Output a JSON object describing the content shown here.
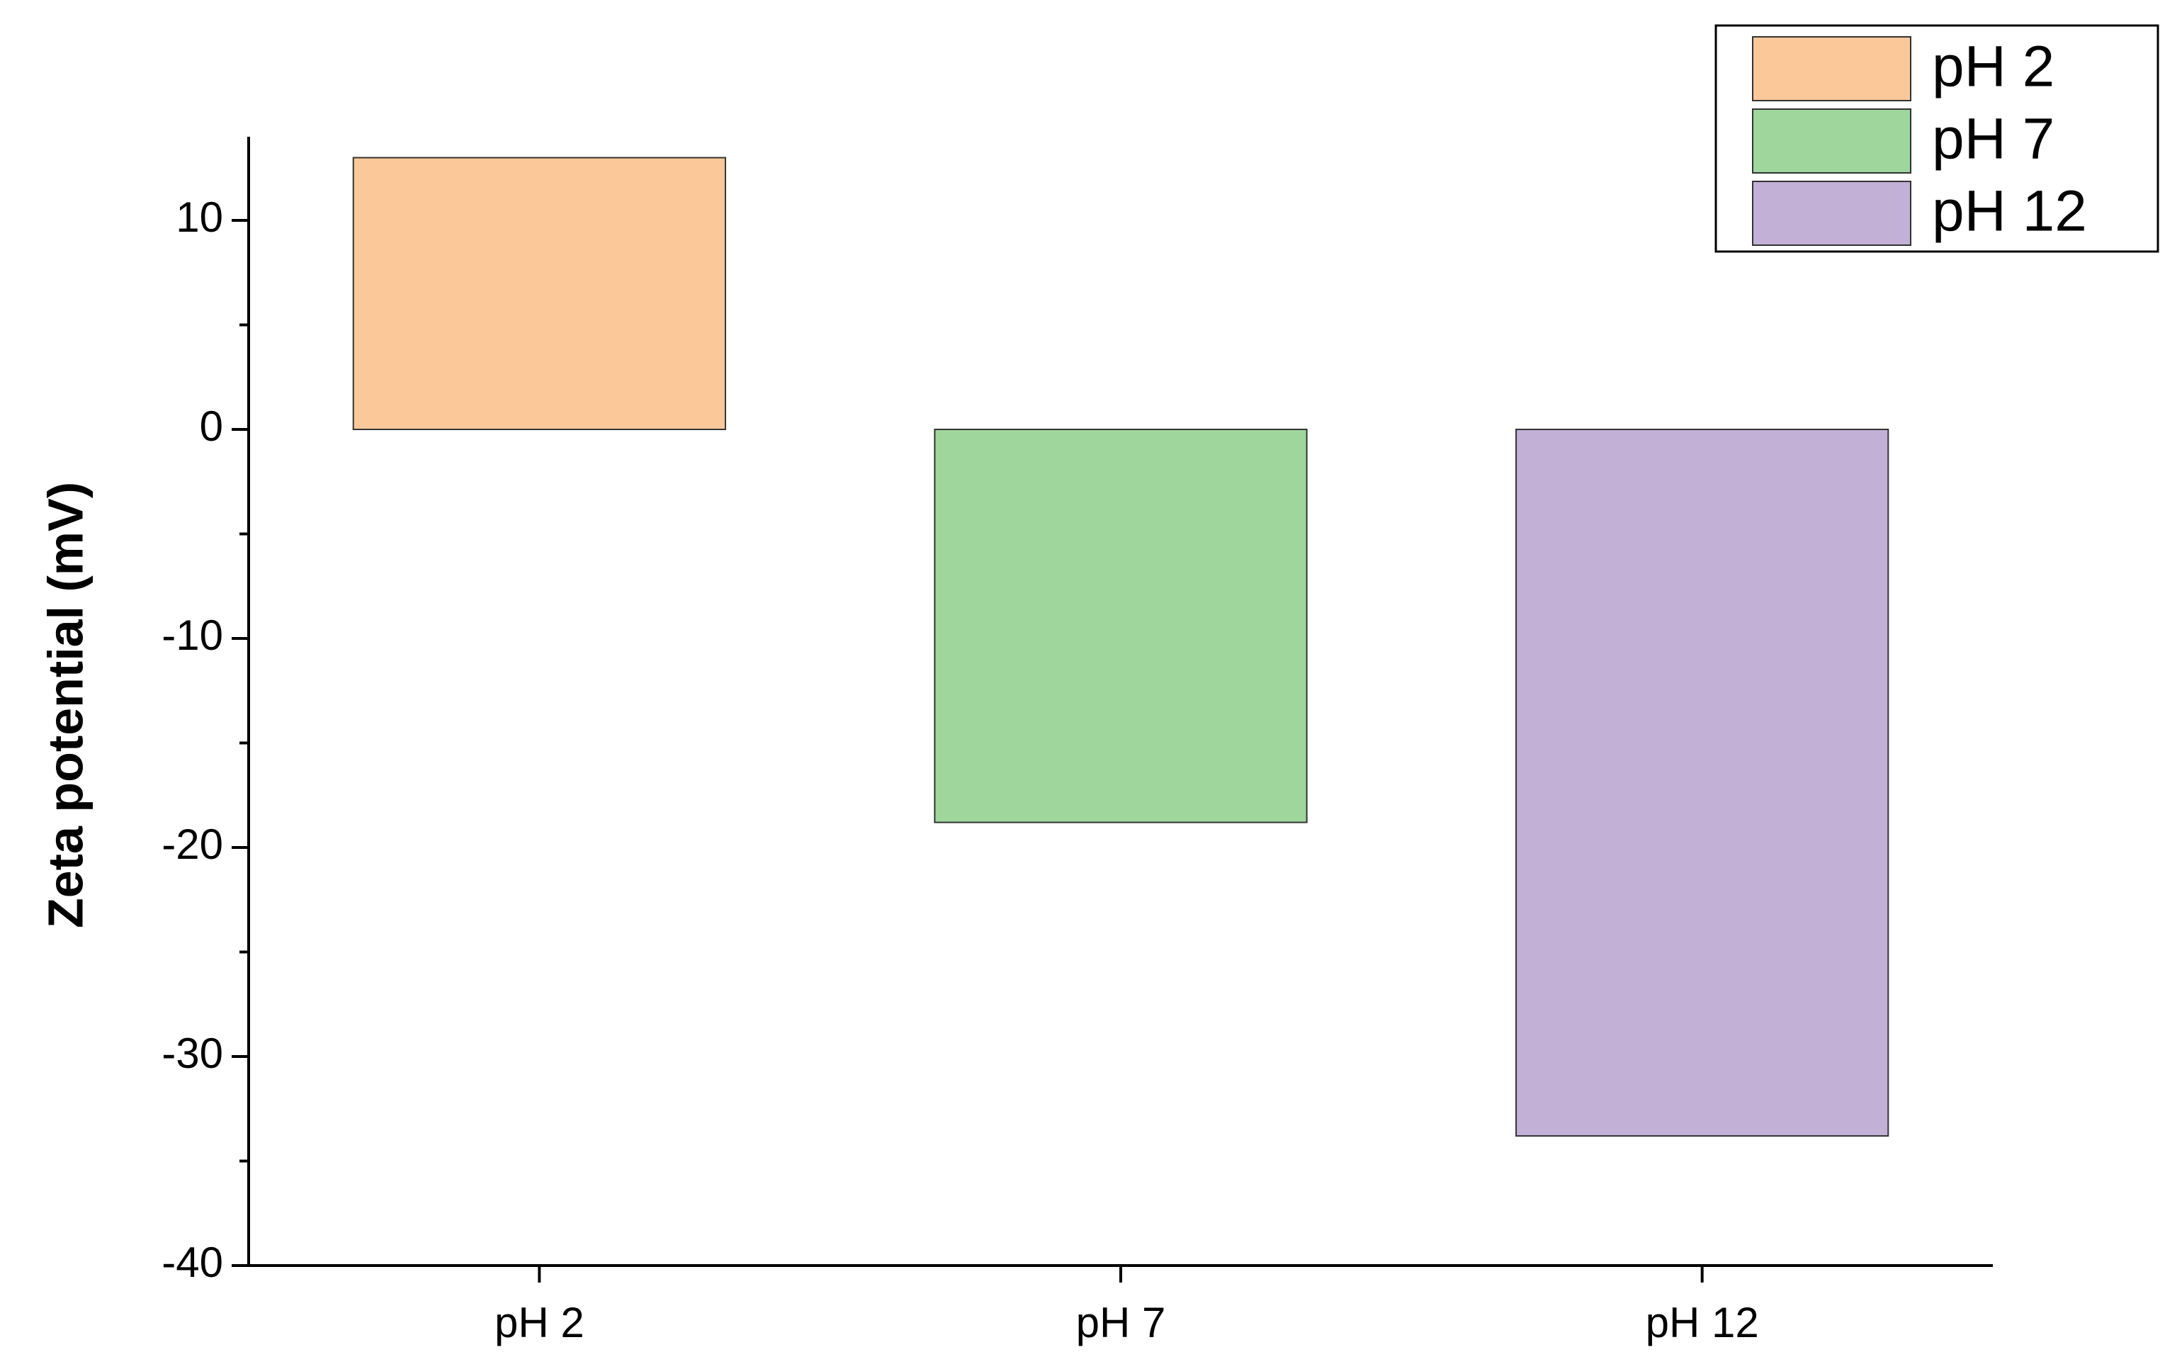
{
  "chart_data": {
    "type": "bar",
    "y_label": "Zeta potential (mV)",
    "categories": [
      "pH 2",
      "pH 7",
      "pH 12"
    ],
    "values": [
      13,
      -18.8,
      -33.8
    ],
    "colors": [
      "#fbc899",
      "#9ed69c",
      "#c2b0d6"
    ],
    "ylim": [
      -40,
      14
    ],
    "yticks": [
      -40,
      -30,
      -20,
      -10,
      0,
      10
    ],
    "yminorticks": [
      -35,
      -25,
      -15,
      -5,
      5
    ],
    "legend": "top-right"
  }
}
